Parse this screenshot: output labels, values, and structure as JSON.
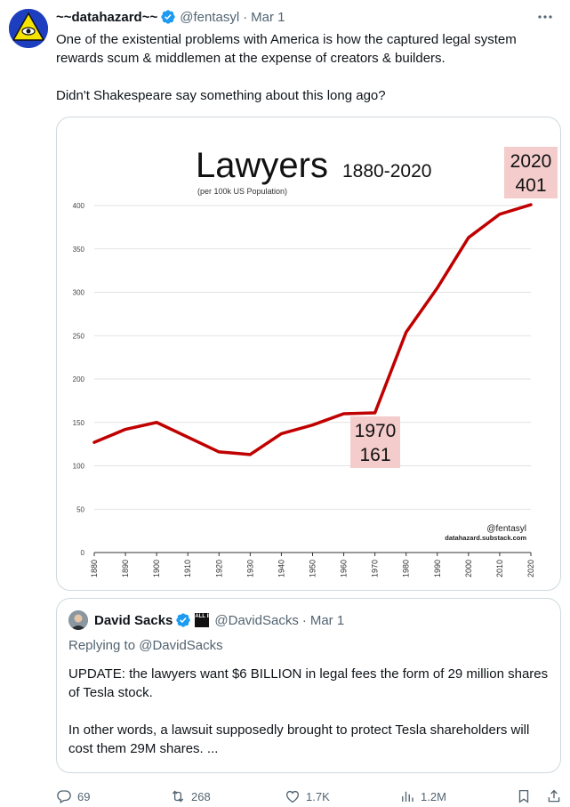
{
  "tweet": {
    "display_name": "~~datahazard~~",
    "handle": "@fentasyl",
    "separator": "·",
    "date": "Mar 1",
    "paragraphs": [
      "One of the existential problems with America is how the captured legal system rewards scum & middlemen at the expense of creators & builders.",
      "Didn't Shakespeare say something about this long ago?"
    ]
  },
  "chart_data": {
    "type": "line",
    "title": "Lawyers",
    "title_suffix": "1880-2020",
    "subtitle": "(per 100k US Population)",
    "x": [
      1880,
      1890,
      1900,
      1910,
      1920,
      1930,
      1940,
      1950,
      1960,
      1970,
      1980,
      1990,
      2000,
      2010,
      2020
    ],
    "values": [
      127,
      142,
      150,
      133,
      116,
      113,
      137,
      147,
      160,
      161,
      254,
      305,
      363,
      390,
      401
    ],
    "ylim": [
      0,
      400
    ],
    "yticks": [
      0,
      50,
      100,
      150,
      200,
      250,
      300,
      350,
      400
    ],
    "line_color": "#c00000",
    "highlight_color": "#f4cccc",
    "annotations": [
      {
        "year": "1970",
        "value": "161"
      },
      {
        "year": "2020",
        "value": "401"
      }
    ],
    "credit_handle": "@fentasyl",
    "credit_site": "datahazard.substack.com"
  },
  "quote": {
    "display_name": "David Sacks",
    "badge": "ALL IN",
    "handle": "@DavidSacks",
    "separator": "·",
    "date": "Mar 1",
    "reply_to": "Replying to @DavidSacks",
    "paragraphs": [
      "UPDATE: the lawyers want $6 BILLION in legal fees the form of 29 million shares of Tesla stock.",
      "In other words, a lawsuit supposedly brought to protect Tesla shareholders will cost them 29M shares. ..."
    ]
  },
  "actions": {
    "replies": "69",
    "reposts": "268",
    "likes": "1.7K",
    "views": "1.2M"
  },
  "colors": {
    "verified": "#1d9bf0",
    "text": "#0f1419",
    "muted": "#536471",
    "border": "#cfd9de"
  },
  "icons": [
    "verified-badge-icon",
    "more-icon",
    "reply-icon",
    "repost-icon",
    "like-icon",
    "views-icon",
    "bookmark-icon",
    "share-icon"
  ]
}
